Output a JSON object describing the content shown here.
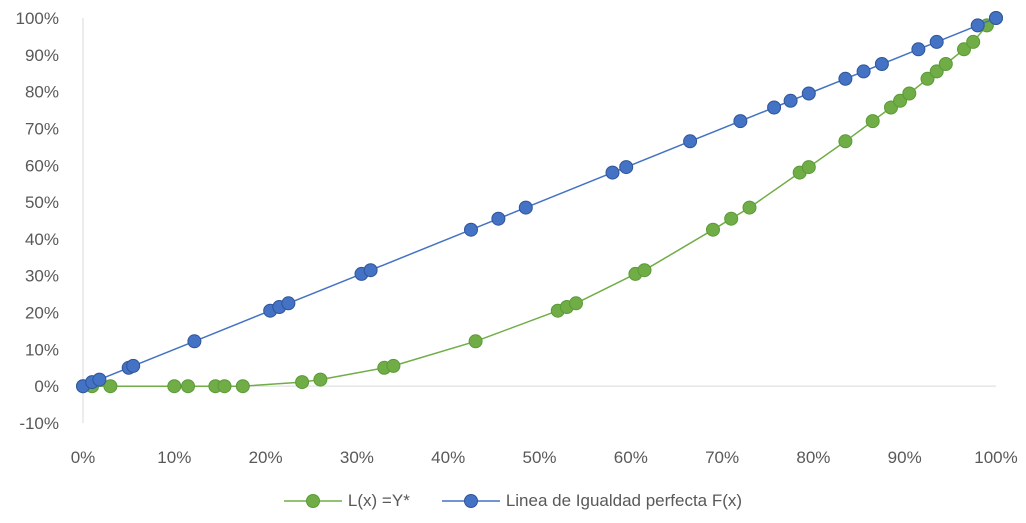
{
  "chart_data": {
    "type": "scatter",
    "title": "",
    "xlabel": "",
    "ylabel": "",
    "xlim": [
      0,
      1
    ],
    "ylim": [
      -0.1,
      1
    ],
    "x_ticks": [
      "0%",
      "10%",
      "20%",
      "30%",
      "40%",
      "50%",
      "60%",
      "70%",
      "80%",
      "90%",
      "100%"
    ],
    "y_ticks": [
      "-10%",
      "0%",
      "10%",
      "20%",
      "30%",
      "40%",
      "50%",
      "60%",
      "70%",
      "80%",
      "90%",
      "100%"
    ],
    "grid": false,
    "legend_position": "bottom",
    "series": [
      {
        "name": "L(x) =Y*",
        "color": "#70ad47",
        "marker": "circle",
        "points": [
          [
            0.0,
            0.0
          ],
          [
            0.01,
            0.0
          ],
          [
            0.03,
            0.0
          ],
          [
            0.1,
            0.0
          ],
          [
            0.115,
            0.0
          ],
          [
            0.145,
            0.0
          ],
          [
            0.155,
            0.0
          ],
          [
            0.175,
            0.0
          ],
          [
            0.24,
            0.011
          ],
          [
            0.26,
            0.018
          ],
          [
            0.33,
            0.05
          ],
          [
            0.34,
            0.055
          ],
          [
            0.43,
            0.122
          ],
          [
            0.52,
            0.205
          ],
          [
            0.53,
            0.215
          ],
          [
            0.54,
            0.225
          ],
          [
            0.605,
            0.305
          ],
          [
            0.615,
            0.315
          ],
          [
            0.69,
            0.425
          ],
          [
            0.71,
            0.455
          ],
          [
            0.73,
            0.485
          ],
          [
            0.785,
            0.58
          ],
          [
            0.795,
            0.595
          ],
          [
            0.835,
            0.665
          ],
          [
            0.865,
            0.72
          ],
          [
            0.885,
            0.757
          ],
          [
            0.895,
            0.775
          ],
          [
            0.905,
            0.795
          ],
          [
            0.925,
            0.835
          ],
          [
            0.935,
            0.855
          ],
          [
            0.945,
            0.875
          ],
          [
            0.965,
            0.915
          ],
          [
            0.975,
            0.935
          ],
          [
            0.99,
            0.98
          ],
          [
            1.0,
            1.0
          ]
        ]
      },
      {
        "name": "Linea de Igualdad perfecta F(x)",
        "color": "#4472c4",
        "marker": "circle",
        "points": [
          [
            0.0,
            0.0
          ],
          [
            0.01,
            0.011
          ],
          [
            0.018,
            0.018
          ],
          [
            0.05,
            0.05
          ],
          [
            0.055,
            0.055
          ],
          [
            0.122,
            0.122
          ],
          [
            0.205,
            0.205
          ],
          [
            0.215,
            0.215
          ],
          [
            0.225,
            0.225
          ],
          [
            0.305,
            0.305
          ],
          [
            0.315,
            0.315
          ],
          [
            0.425,
            0.425
          ],
          [
            0.455,
            0.455
          ],
          [
            0.485,
            0.485
          ],
          [
            0.58,
            0.58
          ],
          [
            0.595,
            0.595
          ],
          [
            0.665,
            0.665
          ],
          [
            0.72,
            0.72
          ],
          [
            0.757,
            0.757
          ],
          [
            0.775,
            0.775
          ],
          [
            0.795,
            0.795
          ],
          [
            0.835,
            0.835
          ],
          [
            0.855,
            0.855
          ],
          [
            0.875,
            0.875
          ],
          [
            0.915,
            0.915
          ],
          [
            0.935,
            0.935
          ],
          [
            0.98,
            0.98
          ],
          [
            1.0,
            1.0
          ]
        ]
      }
    ]
  }
}
